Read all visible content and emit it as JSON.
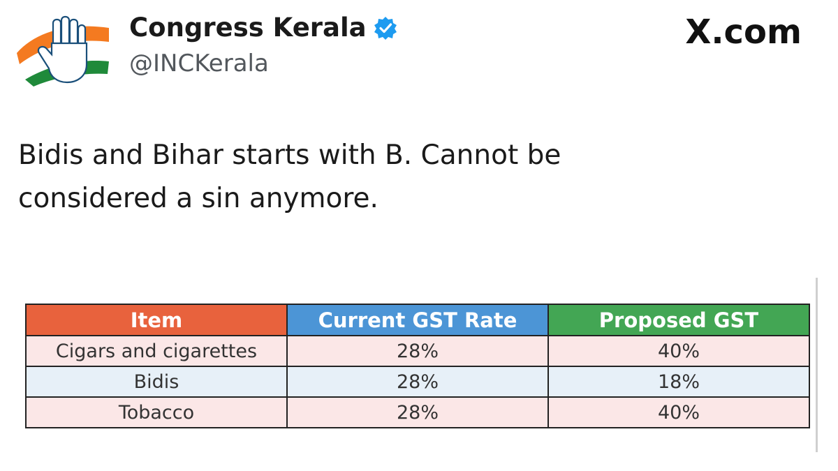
{
  "tweet": {
    "author": {
      "display_name": "Congress Kerala",
      "handle": "@INCKerala",
      "verified": true,
      "avatar_icon": "inc-hand-logo"
    },
    "site_label": "X.com",
    "text_line1": "Bidis and Bihar starts with B. Cannot be",
    "text_line2": "considered a sin anymore."
  },
  "table": {
    "headers": {
      "item": "Item",
      "current": "Current GST Rate",
      "proposed": "Proposed GST"
    },
    "header_colors": {
      "item": "#e8623d",
      "current": "#4c95d6",
      "proposed": "#43a654"
    },
    "rows": [
      {
        "item": "Cigars and cigarettes",
        "current": "28%",
        "proposed": "40%"
      },
      {
        "item": "Bidis",
        "current": "28%",
        "proposed": "18%"
      },
      {
        "item": "Tobacco",
        "current": "28%",
        "proposed": "40%"
      }
    ]
  },
  "colors": {
    "verified_badge": "#1d9bf0",
    "saffron": "#f47a20",
    "green": "#1f8a3a"
  }
}
